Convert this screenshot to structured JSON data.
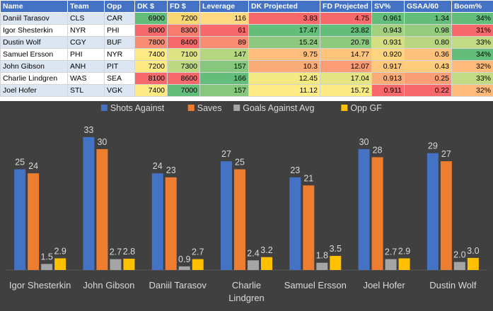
{
  "table": {
    "headers": [
      "Name",
      "Team",
      "Opp",
      "DK $",
      "FD $",
      "Leverage",
      "DK Projected",
      "FD Projected",
      "SV%",
      "GSAA/60",
      "Boom%"
    ],
    "rows": [
      [
        "Daniil Tarasov",
        "CLS",
        "CAR",
        "6900",
        "7200",
        "116",
        "3.83",
        "4.75",
        "0.961",
        "1.34",
        "34%"
      ],
      [
        "Igor Shesterkin",
        "NYR",
        "PHI",
        "8000",
        "8300",
        "61",
        "17.47",
        "23.82",
        "0.943",
        "0.98",
        "31%"
      ],
      [
        "Dustin Wolf",
        "CGY",
        "BUF",
        "7800",
        "8400",
        "89",
        "15.24",
        "20.78",
        "0.931",
        "0.80",
        "33%"
      ],
      [
        "Samuel Ersson",
        "PHI",
        "NYR",
        "7400",
        "7100",
        "147",
        "9.75",
        "14.77",
        "0.920",
        "0.36",
        "34%"
      ],
      [
        "John Gibson",
        "ANH",
        "PIT",
        "7200",
        "7300",
        "157",
        "10.3",
        "12.07",
        "0.917",
        "0.43",
        "32%"
      ],
      [
        "Charlie Lindgren",
        "WAS",
        "SEA",
        "8100",
        "8600",
        "166",
        "12.45",
        "17.04",
        "0.913",
        "0.25",
        "33%"
      ],
      [
        "Joel Hofer",
        "STL",
        "VGK",
        "7400",
        "7000",
        "157",
        "11.12",
        "15.72",
        "0.911",
        "0.22",
        "32%"
      ]
    ],
    "cell_colors": [
      [
        "",
        "",
        "",
        "#63be7b",
        "#f8d770",
        "#fed980",
        "#f8696b",
        "#f8696b",
        "#63be7b",
        "#63be7b",
        "#63be7b"
      ],
      [
        "",
        "",
        "",
        "#f8696b",
        "#f97b6e",
        "#f8696b",
        "#63be7b",
        "#63be7b",
        "#a2d07f",
        "#95cc7e",
        "#f8696b"
      ],
      [
        "",
        "",
        "",
        "#f98c72",
        "#f8696b",
        "#f98c72",
        "#8cc97e",
        "#8dca7e",
        "#d5df82",
        "#b9d780",
        "#c2da81"
      ],
      [
        "",
        "",
        "",
        "#ffeb84",
        "#dfe283",
        "#b5d57f",
        "#fdbd7b",
        "#fdc47c",
        "#fed57f",
        "#fdc17c",
        "#63be7b"
      ],
      [
        "",
        "",
        "",
        "#feea83",
        "#bcd880",
        "#84c77d",
        "#fbab77",
        "#fa9c75",
        "#fec97d",
        "#fecd7e",
        "#fdba7a"
      ],
      [
        "",
        "",
        "",
        "#f8696b",
        "#f8696b",
        "#63be7b",
        "#f4e883",
        "#e5e483",
        "#fbab77",
        "#fa9e75",
        "#c2da81"
      ],
      [
        "",
        "",
        "",
        "#ffeb84",
        "#63be7b",
        "#84c77d",
        "#ffeb84",
        "#fbeb84",
        "#f8696b",
        "#f8696b",
        "#fdba7a"
      ]
    ]
  },
  "chart_data": {
    "type": "bar",
    "title": "",
    "legend_position": "top",
    "categories": [
      "Igor Shesterkin",
      "John Gibson",
      "Daniil Tarasov",
      "Charlie Lindgren",
      "Samuel Ersson",
      "Joel Hofer",
      "Dustin Wolf"
    ],
    "series": [
      {
        "name": "Shots Against",
        "color": "#4472c4",
        "values": [
          25,
          33,
          24,
          27,
          23,
          30,
          29
        ],
        "labels": [
          "25",
          "33",
          "24",
          "27",
          "23",
          "30",
          "29"
        ]
      },
      {
        "name": "Saves",
        "color": "#ed7d31",
        "values": [
          24,
          30,
          23,
          25,
          21,
          28,
          27
        ],
        "labels": [
          "24",
          "30",
          "23",
          "25",
          "21",
          "28",
          "27"
        ]
      },
      {
        "name": "Goals Against Avg",
        "color": "#a5a5a5",
        "values": [
          1.5,
          2.7,
          0.9,
          2.4,
          1.8,
          2.7,
          2.0
        ],
        "labels": [
          "1.5",
          "2.7",
          "0.9",
          "2.4",
          "1.8",
          "2.7",
          "2.0"
        ]
      },
      {
        "name": "Opp GF",
        "color": "#ffc000",
        "values": [
          2.9,
          2.8,
          2.7,
          3.2,
          3.5,
          2.9,
          3.0
        ],
        "labels": [
          "2.9",
          "2.8",
          "2.7",
          "3.2",
          "3.5",
          "2.9",
          "3.0"
        ]
      }
    ],
    "ylim": [
      0,
      36
    ],
    "grid": false,
    "xlabel": "",
    "ylabel": ""
  }
}
